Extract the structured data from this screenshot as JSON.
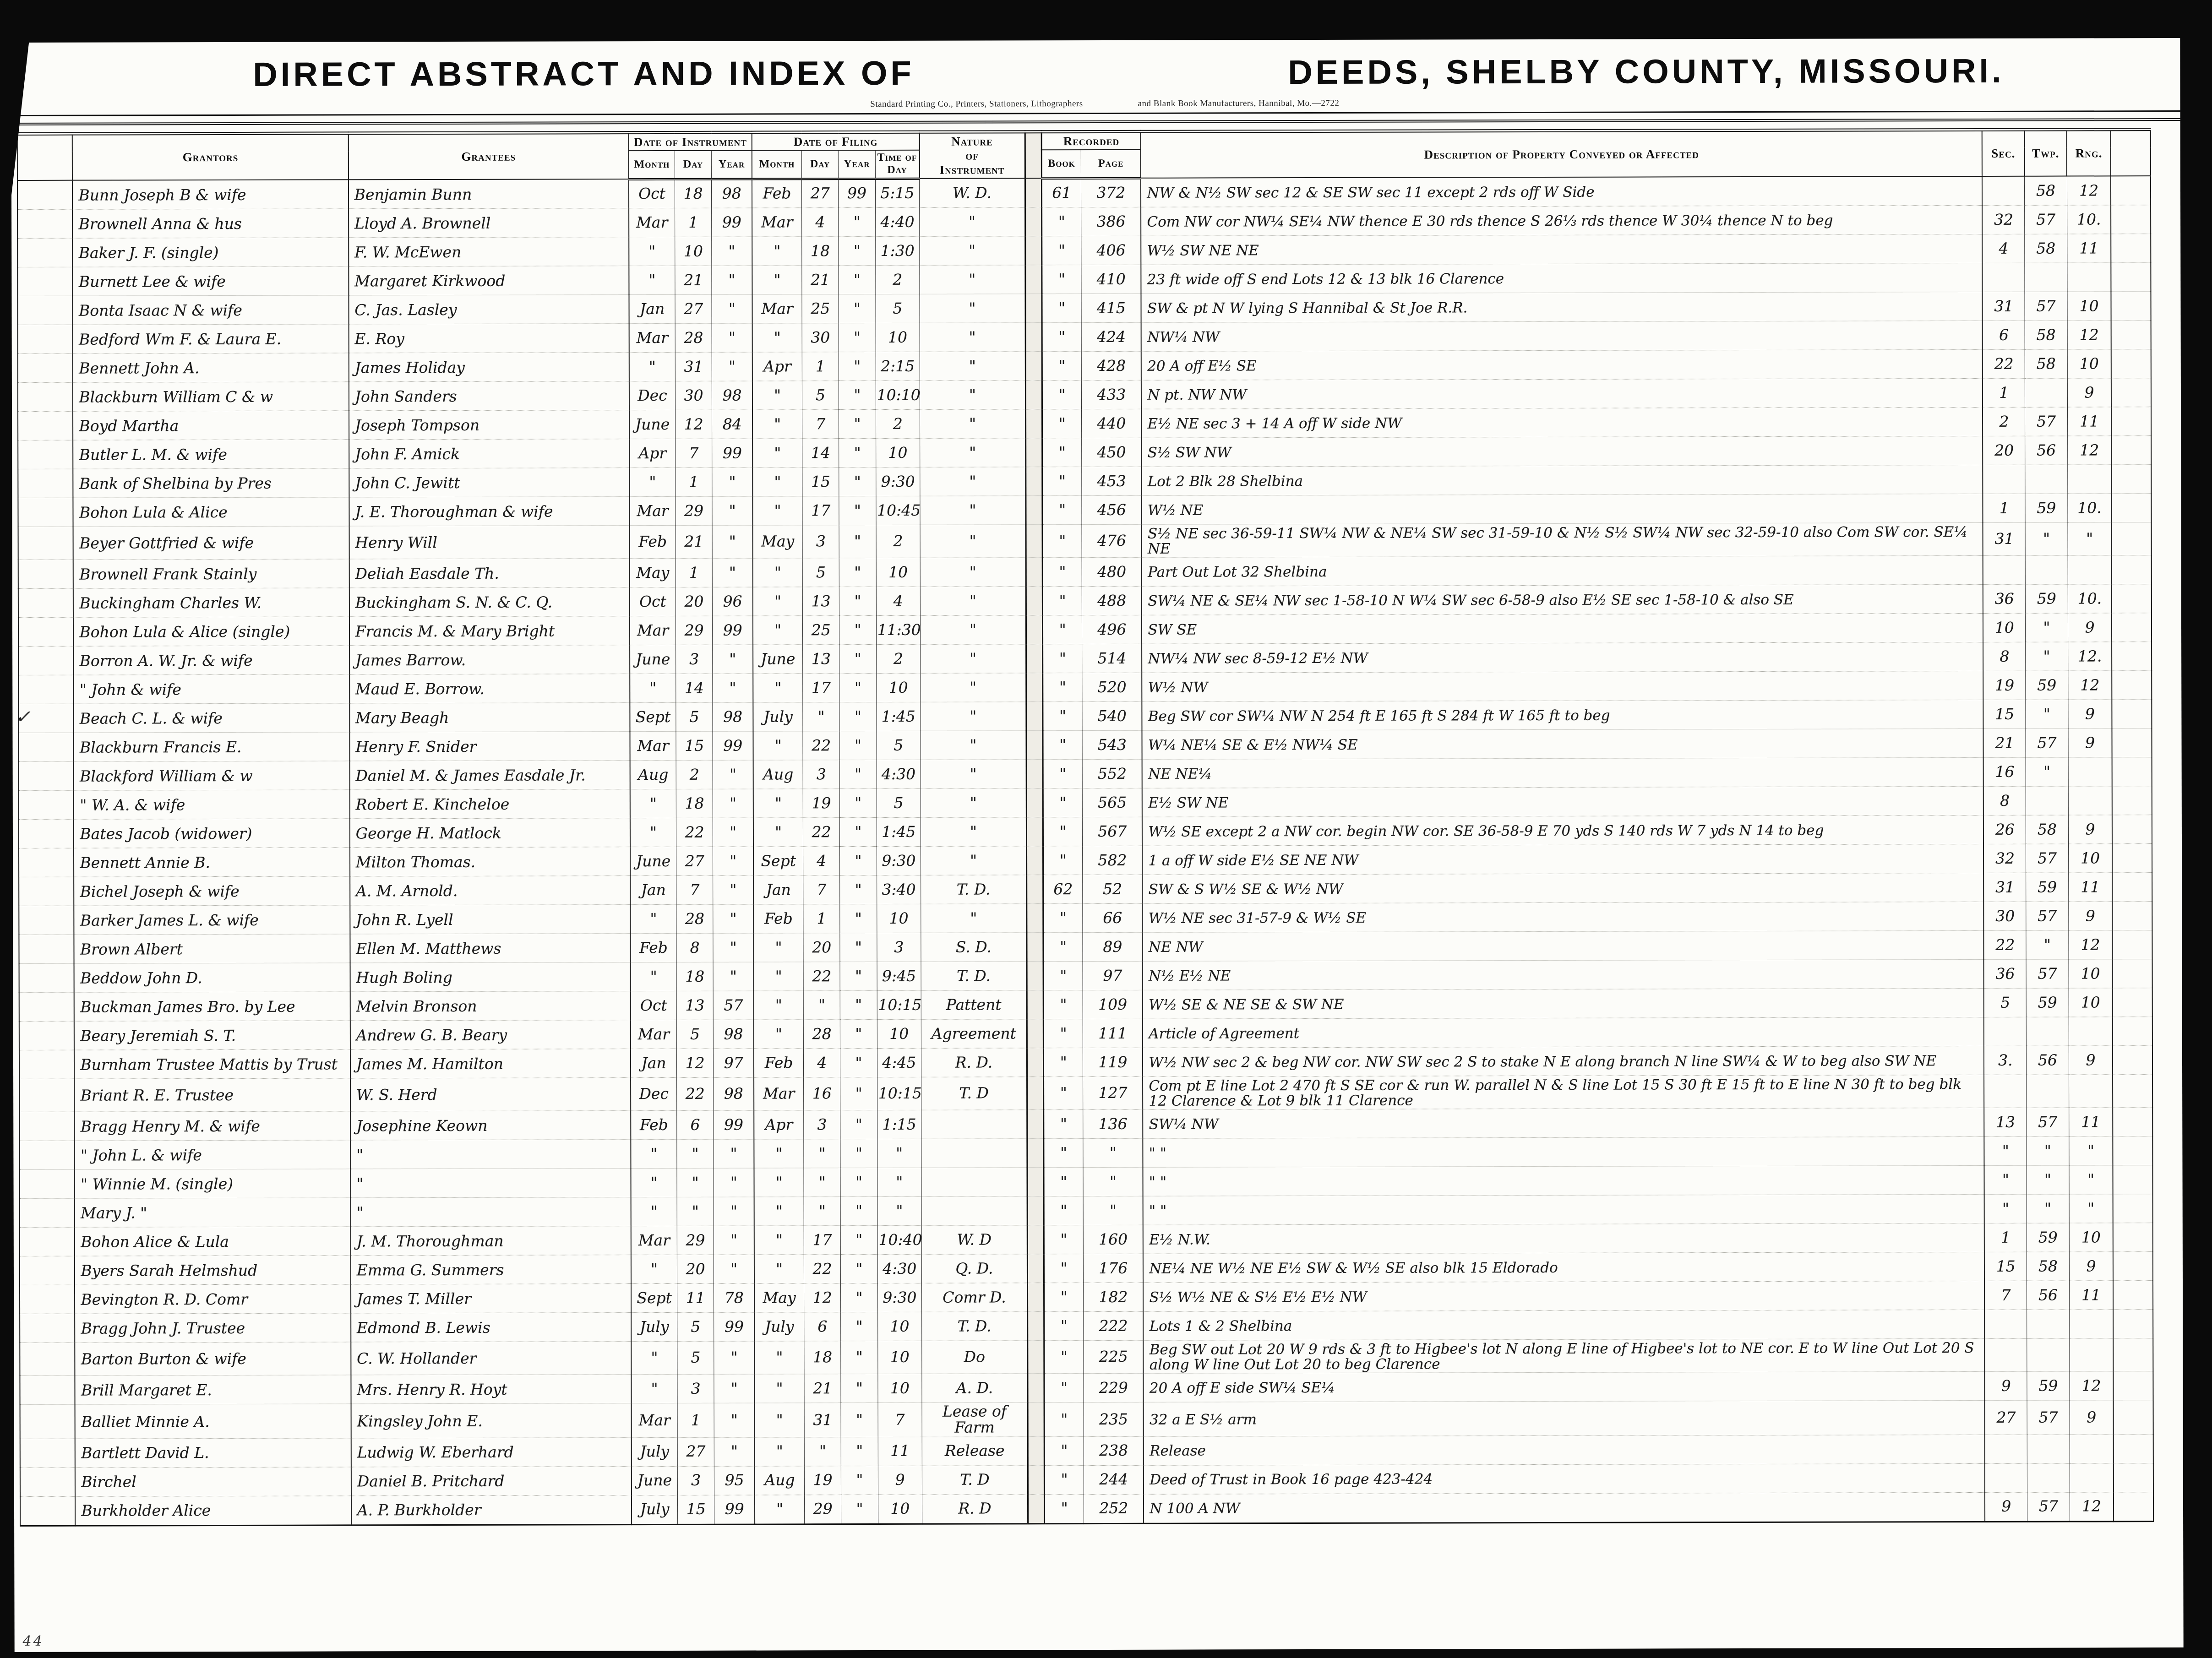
{
  "page": {
    "left_title": "DIRECT ABSTRACT AND INDEX OF",
    "right_title": "DEEDS, SHELBY COUNTY, MISSOURI.",
    "left_credit": "Standard Printing Co., Printers, Stationers, Lithographers",
    "right_credit": "and Blank Book Manufacturers, Hannibal, Mo.—2722"
  },
  "colors": {
    "ink": "#1a1a1a",
    "paper": "#fcfcf9",
    "background": "#0a0a0a"
  },
  "columns": {
    "grantors": "Grantors",
    "grantees": "Grantees",
    "date_of_instrument": "Date of Instrument",
    "date_of_filing": "Date of Filing",
    "month": "Month",
    "day": "Day",
    "year": "Year",
    "time_of_day": "Time of Day",
    "nature_line1": "Nature",
    "nature_line2": "of",
    "nature_line3": "Instrument",
    "recorded": "Recorded",
    "book": "Book",
    "page": "Page",
    "description": "Description of Property Conveyed or Affected",
    "sec": "Sec.",
    "twp": "Twp.",
    "rng": "Rng."
  },
  "marks": {
    "margin_check": "✓",
    "corner_number": "44"
  },
  "rows": [
    {
      "g": "Bunn Joseph B & wife",
      "e": "Benjamin Bunn",
      "im": "Oct",
      "idy": "18",
      "iy": "98",
      "fm": "Feb",
      "fd": "27",
      "fy": "99",
      "tod": "5:15",
      "nat": "W. D.",
      "bk": "61",
      "pg": "372",
      "d": "NW & N½ SW sec 12 & SE SW sec 11 except 2 rds off W Side",
      "s": "",
      "t": "58",
      "r": "12"
    },
    {
      "g": "Brownell Anna & hus",
      "e": "Lloyd A. Brownell",
      "im": "Mar",
      "idy": "1",
      "iy": "99",
      "fm": "Mar",
      "fd": "4",
      "fy": "\"",
      "tod": "4:40",
      "nat": "\"",
      "bk": "\"",
      "pg": "386",
      "d": "Com NW cor NW¼ SE¼ NW thence E 30 rds thence S 26⅓ rds thence W 30¼ thence N to beg",
      "s": "32",
      "t": "57",
      "r": "10."
    },
    {
      "g": "Baker J. F. (single)",
      "e": "F. W. McEwen",
      "im": "\"",
      "idy": "10",
      "iy": "\"",
      "fm": "\"",
      "fd": "18",
      "fy": "\"",
      "tod": "1:30",
      "nat": "\"",
      "bk": "\"",
      "pg": "406",
      "d": "W½ SW NE NE",
      "s": "4",
      "t": "58",
      "r": "11"
    },
    {
      "g": "Burnett Lee & wife",
      "e": "Margaret Kirkwood",
      "im": "\"",
      "idy": "21",
      "iy": "\"",
      "fm": "\"",
      "fd": "21",
      "fy": "\"",
      "tod": "2",
      "nat": "\"",
      "bk": "\"",
      "pg": "410",
      "d": "23 ft wide off S end Lots 12 & 13 blk 16 Clarence",
      "s": "",
      "t": "",
      "r": ""
    },
    {
      "g": "Bonta Isaac N & wife",
      "e": "C. Jas. Lasley",
      "im": "Jan",
      "idy": "27",
      "iy": "\"",
      "fm": "Mar",
      "fd": "25",
      "fy": "\"",
      "tod": "5",
      "nat": "\"",
      "bk": "\"",
      "pg": "415",
      "d": "SW & pt N W lying S Hannibal & St Joe R.R.",
      "s": "31",
      "t": "57",
      "r": "10"
    },
    {
      "g": "Bedford Wm F. & Laura E.",
      "e": "E. Roy",
      "im": "Mar",
      "idy": "28",
      "iy": "\"",
      "fm": "\"",
      "fd": "30",
      "fy": "\"",
      "tod": "10",
      "nat": "\"",
      "bk": "\"",
      "pg": "424",
      "d": "NW¼ NW",
      "s": "6",
      "t": "58",
      "r": "12"
    },
    {
      "g": "Bennett John A.",
      "e": "James Holiday",
      "im": "\"",
      "idy": "31",
      "iy": "\"",
      "fm": "Apr",
      "fd": "1",
      "fy": "\"",
      "tod": "2:15",
      "nat": "\"",
      "bk": "\"",
      "pg": "428",
      "d": "20 A off E½ SE",
      "s": "22",
      "t": "58",
      "r": "10"
    },
    {
      "g": "Blackburn William C & w",
      "e": "John Sanders",
      "im": "Dec",
      "idy": "30",
      "iy": "98",
      "fm": "\"",
      "fd": "5",
      "fy": "\"",
      "tod": "10:10",
      "nat": "\"",
      "bk": "\"",
      "pg": "433",
      "d": "N pt. NW NW",
      "s": "1",
      "t": "",
      "r": "9"
    },
    {
      "g": "Boyd Martha",
      "e": "Joseph Tompson",
      "im": "June",
      "idy": "12",
      "iy": "84",
      "fm": "\"",
      "fd": "7",
      "fy": "\"",
      "tod": "2",
      "nat": "\"",
      "bk": "\"",
      "pg": "440",
      "d": "E½ NE sec 3 + 14 A off W side NW",
      "s": "2",
      "t": "57",
      "r": "11"
    },
    {
      "g": "Butler L. M. & wife",
      "e": "John F. Amick",
      "im": "Apr",
      "idy": "7",
      "iy": "99",
      "fm": "\"",
      "fd": "14",
      "fy": "\"",
      "tod": "10",
      "nat": "\"",
      "bk": "\"",
      "pg": "450",
      "d": "S½ SW NW",
      "s": "20",
      "t": "56",
      "r": "12"
    },
    {
      "g": "Bank of Shelbina by Pres",
      "e": "John C. Jewitt",
      "im": "\"",
      "idy": "1",
      "iy": "\"",
      "fm": "\"",
      "fd": "15",
      "fy": "\"",
      "tod": "9:30",
      "nat": "\"",
      "bk": "\"",
      "pg": "453",
      "d": "Lot 2 Blk 28 Shelbina",
      "s": "",
      "t": "",
      "r": ""
    },
    {
      "g": "Bohon Lula & Alice",
      "e": "J. E. Thoroughman & wife",
      "im": "Mar",
      "idy": "29",
      "iy": "\"",
      "fm": "\"",
      "fd": "17",
      "fy": "\"",
      "tod": "10:45",
      "nat": "\"",
      "bk": "\"",
      "pg": "456",
      "d": "W½ NE",
      "s": "1",
      "t": "59",
      "r": "10."
    },
    {
      "g": "Beyer Gottfried & wife",
      "e": "Henry Will",
      "im": "Feb",
      "idy": "21",
      "iy": "\"",
      "fm": "May",
      "fd": "3",
      "fy": "\"",
      "tod": "2",
      "nat": "\"",
      "bk": "\"",
      "pg": "476",
      "d": "S½ NE sec 36-59-11 SW¼ NW & NE¼ SW sec 31-59-10 & N½ S½ SW¼ NW sec 32-59-10 also Com SW cor. SE¼ NE",
      "s": "31",
      "t": "\"",
      "r": "\""
    },
    {
      "g": "Brownell Frank Stainly",
      "e": "Deliah Easdale Th.",
      "im": "May",
      "idy": "1",
      "iy": "\"",
      "fm": "\"",
      "fd": "5",
      "fy": "\"",
      "tod": "10",
      "nat": "\"",
      "bk": "\"",
      "pg": "480",
      "d": "Part Out Lot 32 Shelbina",
      "s": "",
      "t": "",
      "r": ""
    },
    {
      "g": "Buckingham Charles W.",
      "e": "Buckingham S. N. & C. Q.",
      "im": "Oct",
      "idy": "20",
      "iy": "96",
      "fm": "\"",
      "fd": "13",
      "fy": "\"",
      "tod": "4",
      "nat": "\"",
      "bk": "\"",
      "pg": "488",
      "d": "SW¼ NE & SE¼ NW sec 1-58-10 N W¼ SW sec 6-58-9 also E½ SE sec 1-58-10 & also SE",
      "s": "36",
      "t": "59",
      "r": "10."
    },
    {
      "g": "Bohon Lula & Alice (single)",
      "e": "Francis M. & Mary Bright",
      "im": "Mar",
      "idy": "29",
      "iy": "99",
      "fm": "\"",
      "fd": "25",
      "fy": "\"",
      "tod": "11:30",
      "nat": "\"",
      "bk": "\"",
      "pg": "496",
      "d": "SW SE",
      "s": "10",
      "t": "\"",
      "r": "9"
    },
    {
      "g": "Borron A. W. Jr. & wife",
      "e": "James Barrow.",
      "im": "June",
      "idy": "3",
      "iy": "\"",
      "fm": "June",
      "fd": "13",
      "fy": "\"",
      "tod": "2",
      "nat": "\"",
      "bk": "\"",
      "pg": "514",
      "d": "NW¼ NW sec 8-59-12 E½ NW",
      "s": "8",
      "t": "\"",
      "r": "12."
    },
    {
      "g": "\"   John & wife",
      "e": "Maud E. Borrow.",
      "im": "\"",
      "idy": "14",
      "iy": "\"",
      "fm": "\"",
      "fd": "17",
      "fy": "\"",
      "tod": "10",
      "nat": "\"",
      "bk": "\"",
      "pg": "520",
      "d": "W½ NW",
      "s": "19",
      "t": "59",
      "r": "12"
    },
    {
      "g": "Beach C. L. & wife",
      "e": "Mary Beagh",
      "im": "Sept",
      "idy": "5",
      "iy": "98",
      "fm": "July",
      "fd": "\"",
      "fy": "\"",
      "tod": "1:45",
      "nat": "\"",
      "bk": "\"",
      "pg": "540",
      "d": "Beg SW cor SW¼ NW N 254 ft E 165 ft S 284 ft W 165 ft to beg",
      "s": "15",
      "t": "\"",
      "r": "9"
    },
    {
      "g": "Blackburn Francis E.",
      "e": "Henry F. Snider",
      "im": "Mar",
      "idy": "15",
      "iy": "99",
      "fm": "\"",
      "fd": "22",
      "fy": "\"",
      "tod": "5",
      "nat": "\"",
      "bk": "\"",
      "pg": "543",
      "d": "W¼ NE¼ SE & E½ NW¼ SE",
      "s": "21",
      "t": "57",
      "r": "9"
    },
    {
      "g": "Blackford William & w",
      "e": "Daniel M. & James Easdale Jr.",
      "im": "Aug",
      "idy": "2",
      "iy": "\"",
      "fm": "Aug",
      "fd": "3",
      "fy": "\"",
      "tod": "4:30",
      "nat": "\"",
      "bk": "\"",
      "pg": "552",
      "d": "NE NE¼",
      "s": "16",
      "t": "\"",
      "r": ""
    },
    {
      "g": "\"   W. A. & wife",
      "e": "Robert E. Kincheloe",
      "im": "\"",
      "idy": "18",
      "iy": "\"",
      "fm": "\"",
      "fd": "19",
      "fy": "\"",
      "tod": "5",
      "nat": "\"",
      "bk": "\"",
      "pg": "565",
      "d": "E½ SW NE",
      "s": "8",
      "t": "",
      "r": ""
    },
    {
      "g": "Bates Jacob (widower)",
      "e": "George H. Matlock",
      "im": "\"",
      "idy": "22",
      "iy": "\"",
      "fm": "\"",
      "fd": "22",
      "fy": "\"",
      "tod": "1:45",
      "nat": "\"",
      "bk": "\"",
      "pg": "567",
      "d": "W½ SE except 2 a NW cor. begin NW cor. SE 36-58-9 E 70 yds S 140 rds W 7 yds N 14 to beg",
      "s": "26",
      "t": "58",
      "r": "9"
    },
    {
      "g": "Bennett Annie B.",
      "e": "Milton Thomas.",
      "im": "June",
      "idy": "27",
      "iy": "\"",
      "fm": "Sept",
      "fd": "4",
      "fy": "\"",
      "tod": "9:30",
      "nat": "\"",
      "bk": "\"",
      "pg": "582",
      "d": "1 a off W side E½ SE NE NW",
      "s": "32",
      "t": "57",
      "r": "10"
    },
    {
      "g": "Bichel Joseph & wife",
      "e": "A. M. Arnold.",
      "im": "Jan",
      "idy": "7",
      "iy": "\"",
      "fm": "Jan",
      "fd": "7",
      "fy": "\"",
      "tod": "3:40",
      "nat": "T. D.",
      "bk": "62",
      "pg": "52",
      "d": "SW & S W½ SE & W½ NW",
      "s": "31",
      "t": "59",
      "r": "11"
    },
    {
      "g": "Barker James L. & wife",
      "e": "John R. Lyell",
      "im": "\"",
      "idy": "28",
      "iy": "\"",
      "fm": "Feb",
      "fd": "1",
      "fy": "\"",
      "tod": "10",
      "nat": "\"",
      "bk": "\"",
      "pg": "66",
      "d": "W½ NE sec 31-57-9 & W½ SE",
      "s": "30",
      "t": "57",
      "r": "9"
    },
    {
      "g": "Brown Albert",
      "e": "Ellen M. Matthews",
      "im": "Feb",
      "idy": "8",
      "iy": "\"",
      "fm": "\"",
      "fd": "20",
      "fy": "\"",
      "tod": "3",
      "nat": "S. D.",
      "bk": "\"",
      "pg": "89",
      "d": "NE NW",
      "s": "22",
      "t": "\"",
      "r": "12"
    },
    {
      "g": "Beddow John D.",
      "e": "Hugh Boling",
      "im": "\"",
      "idy": "18",
      "iy": "\"",
      "fm": "\"",
      "fd": "22",
      "fy": "\"",
      "tod": "9:45",
      "nat": "T. D.",
      "bk": "\"",
      "pg": "97",
      "d": "N½ E½ NE",
      "s": "36",
      "t": "57",
      "r": "10"
    },
    {
      "g": "Buckman James Bro. by Lee",
      "e": "Melvin Bronson",
      "im": "Oct",
      "idy": "13",
      "iy": "57",
      "fm": "\"",
      "fd": "\"",
      "fy": "\"",
      "tod": "10:15",
      "nat": "Pattent",
      "bk": "\"",
      "pg": "109",
      "d": "W½ SE & NE SE & SW NE",
      "s": "5",
      "t": "59",
      "r": "10"
    },
    {
      "g": "Beary Jeremiah S. T.",
      "e": "Andrew G. B. Beary",
      "im": "Mar",
      "idy": "5",
      "iy": "98",
      "fm": "\"",
      "fd": "28",
      "fy": "\"",
      "tod": "10",
      "nat": "Agreement",
      "bk": "\"",
      "pg": "111",
      "d": "Article of Agreement",
      "s": "",
      "t": "",
      "r": ""
    },
    {
      "g": "Burnham Trustee Mattis by Trust",
      "e": "James M. Hamilton",
      "im": "Jan",
      "idy": "12",
      "iy": "97",
      "fm": "Feb",
      "fd": "4",
      "fy": "\"",
      "tod": "4:45",
      "nat": "R. D.",
      "bk": "\"",
      "pg": "119",
      "d": "W½ NW sec 2 & beg NW cor. NW SW sec 2 S to stake N E along branch N line SW¼ & W to beg also SW NE",
      "s": "3.",
      "t": "56",
      "r": "9"
    },
    {
      "g": "Briant R. E. Trustee",
      "e": "W. S. Herd",
      "im": "Dec",
      "idy": "22",
      "iy": "98",
      "fm": "Mar",
      "fd": "16",
      "fy": "\"",
      "tod": "10:15",
      "nat": "T. D",
      "bk": "\"",
      "pg": "127",
      "d": "Com pt E line Lot 2  470 ft S SE cor & run W. parallel N & S line Lot 15 S 30 ft E 15 ft to E line N 30 ft to beg blk 12 Clarence & Lot 9 blk 11 Clarence",
      "s": "",
      "t": "",
      "r": ""
    },
    {
      "g": "Bragg Henry M. & wife",
      "e": "Josephine Keown",
      "im": "Feb",
      "idy": "6",
      "iy": "99",
      "fm": "Apr",
      "fd": "3",
      "fy": "\"",
      "tod": "1:15",
      "nat": "",
      "bk": "\"",
      "pg": "136",
      "d": "SW¼ NW",
      "s": "13",
      "t": "57",
      "r": "11"
    },
    {
      "g": "\"   John L. & wife",
      "e": "\"",
      "im": "\"",
      "idy": "\"",
      "iy": "\"",
      "fm": "\"",
      "fd": "\"",
      "fy": "\"",
      "tod": "\"",
      "nat": "",
      "bk": "\"",
      "pg": "\"",
      "d": "\"      \"",
      "s": "\"",
      "t": "\"",
      "r": "\""
    },
    {
      "g": "\"   Winnie M. (single)",
      "e": "\"",
      "im": "\"",
      "idy": "\"",
      "iy": "\"",
      "fm": "\"",
      "fd": "\"",
      "fy": "\"",
      "tod": "\"",
      "nat": "",
      "bk": "\"",
      "pg": "\"",
      "d": "\"      \"",
      "s": "\"",
      "t": "\"",
      "r": "\""
    },
    {
      "g": "     Mary J.  \"",
      "e": "\"",
      "im": "\"",
      "idy": "\"",
      "iy": "\"",
      "fm": "\"",
      "fd": "\"",
      "fy": "\"",
      "tod": "\"",
      "nat": "",
      "bk": "\"",
      "pg": "\"",
      "d": "\"      \"",
      "s": "\"",
      "t": "\"",
      "r": "\""
    },
    {
      "g": "Bohon Alice & Lula",
      "e": "J. M. Thoroughman",
      "im": "Mar",
      "idy": "29",
      "iy": "\"",
      "fm": "\"",
      "fd": "17",
      "fy": "\"",
      "tod": "10:40",
      "nat": "W. D",
      "bk": "\"",
      "pg": "160",
      "d": "E½ N.W.",
      "s": "1",
      "t": "59",
      "r": "10"
    },
    {
      "g": "Byers Sarah Helmshud",
      "e": "Emma G. Summers",
      "im": "\"",
      "idy": "20",
      "iy": "\"",
      "fm": "\"",
      "fd": "22",
      "fy": "\"",
      "tod": "4:30",
      "nat": "Q. D.",
      "bk": "\"",
      "pg": "176",
      "d": "NE¼ NE W½ NE E½ SW & W½ SE also blk 15 Eldorado",
      "s": "15",
      "t": "58",
      "r": "9"
    },
    {
      "g": "Bevington R. D. Comr",
      "e": "James T. Miller",
      "im": "Sept",
      "idy": "11",
      "iy": "78",
      "fm": "May",
      "fd": "12",
      "fy": "\"",
      "tod": "9:30",
      "nat": "Comr D.",
      "bk": "\"",
      "pg": "182",
      "d": "S½ W½ NE & S½ E½ E½ NW",
      "s": "7",
      "t": "56",
      "r": "11"
    },
    {
      "g": "Bragg John J. Trustee",
      "e": "Edmond B. Lewis",
      "im": "July",
      "idy": "5",
      "iy": "99",
      "fm": "July",
      "fd": "6",
      "fy": "\"",
      "tod": "10",
      "nat": "T. D.",
      "bk": "\"",
      "pg": "222",
      "d": "Lots 1 & 2 Shelbina",
      "s": "",
      "t": "",
      "r": ""
    },
    {
      "g": "Barton Burton & wife",
      "e": "C. W. Hollander",
      "im": "\"",
      "idy": "5",
      "iy": "\"",
      "fm": "\"",
      "fd": "18",
      "fy": "\"",
      "tod": "10",
      "nat": "Do",
      "bk": "\"",
      "pg": "225",
      "d": "Beg SW out Lot 20 W 9 rds & 3 ft to Higbee's lot N along E line of Higbee's lot to NE cor. E to W line Out Lot 20 S along W line Out Lot 20 to beg Clarence",
      "s": "",
      "t": "",
      "r": ""
    },
    {
      "g": "Brill Margaret E.",
      "e": "Mrs. Henry R. Hoyt",
      "im": "\"",
      "idy": "3",
      "iy": "\"",
      "fm": "\"",
      "fd": "21",
      "fy": "\"",
      "tod": "10",
      "nat": "A. D.",
      "bk": "\"",
      "pg": "229",
      "d": "20 A off E side SW¼ SE¼",
      "s": "9",
      "t": "59",
      "r": "12"
    },
    {
      "g": "Balliet Minnie A.",
      "e": "Kingsley John E.",
      "im": "Mar",
      "idy": "1",
      "iy": "\"",
      "fm": "\"",
      "fd": "31",
      "fy": "\"",
      "tod": "7",
      "nat": "Lease of Farm",
      "bk": "\"",
      "pg": "235",
      "d": "32 a E S½ arm",
      "s": "27",
      "t": "57",
      "r": "9"
    },
    {
      "g": "Bartlett David L.",
      "e": "Ludwig W. Eberhard",
      "im": "July",
      "idy": "27",
      "iy": "\"",
      "fm": "\"",
      "fd": "\"",
      "fy": "\"",
      "tod": "11",
      "nat": "Release",
      "bk": "\"",
      "pg": "238",
      "d": "Release",
      "s": "",
      "t": "",
      "r": ""
    },
    {
      "g": "      Birchel",
      "e": "Daniel B. Pritchard",
      "im": "June",
      "idy": "3",
      "iy": "95",
      "fm": "Aug",
      "fd": "19",
      "fy": "\"",
      "tod": "9",
      "nat": "T. D",
      "bk": "\"",
      "pg": "244",
      "d": "Deed of Trust in Book 16 page 423-424",
      "s": "",
      "t": "",
      "r": ""
    },
    {
      "g": "Burkholder Alice",
      "e": "A. P. Burkholder",
      "im": "July",
      "idy": "15",
      "iy": "99",
      "fm": "\"",
      "fd": "29",
      "fy": "\"",
      "tod": "10",
      "nat": "R. D",
      "bk": "\"",
      "pg": "252",
      "d": "N 100 A NW",
      "s": "9",
      "t": "57",
      "r": "12"
    }
  ]
}
